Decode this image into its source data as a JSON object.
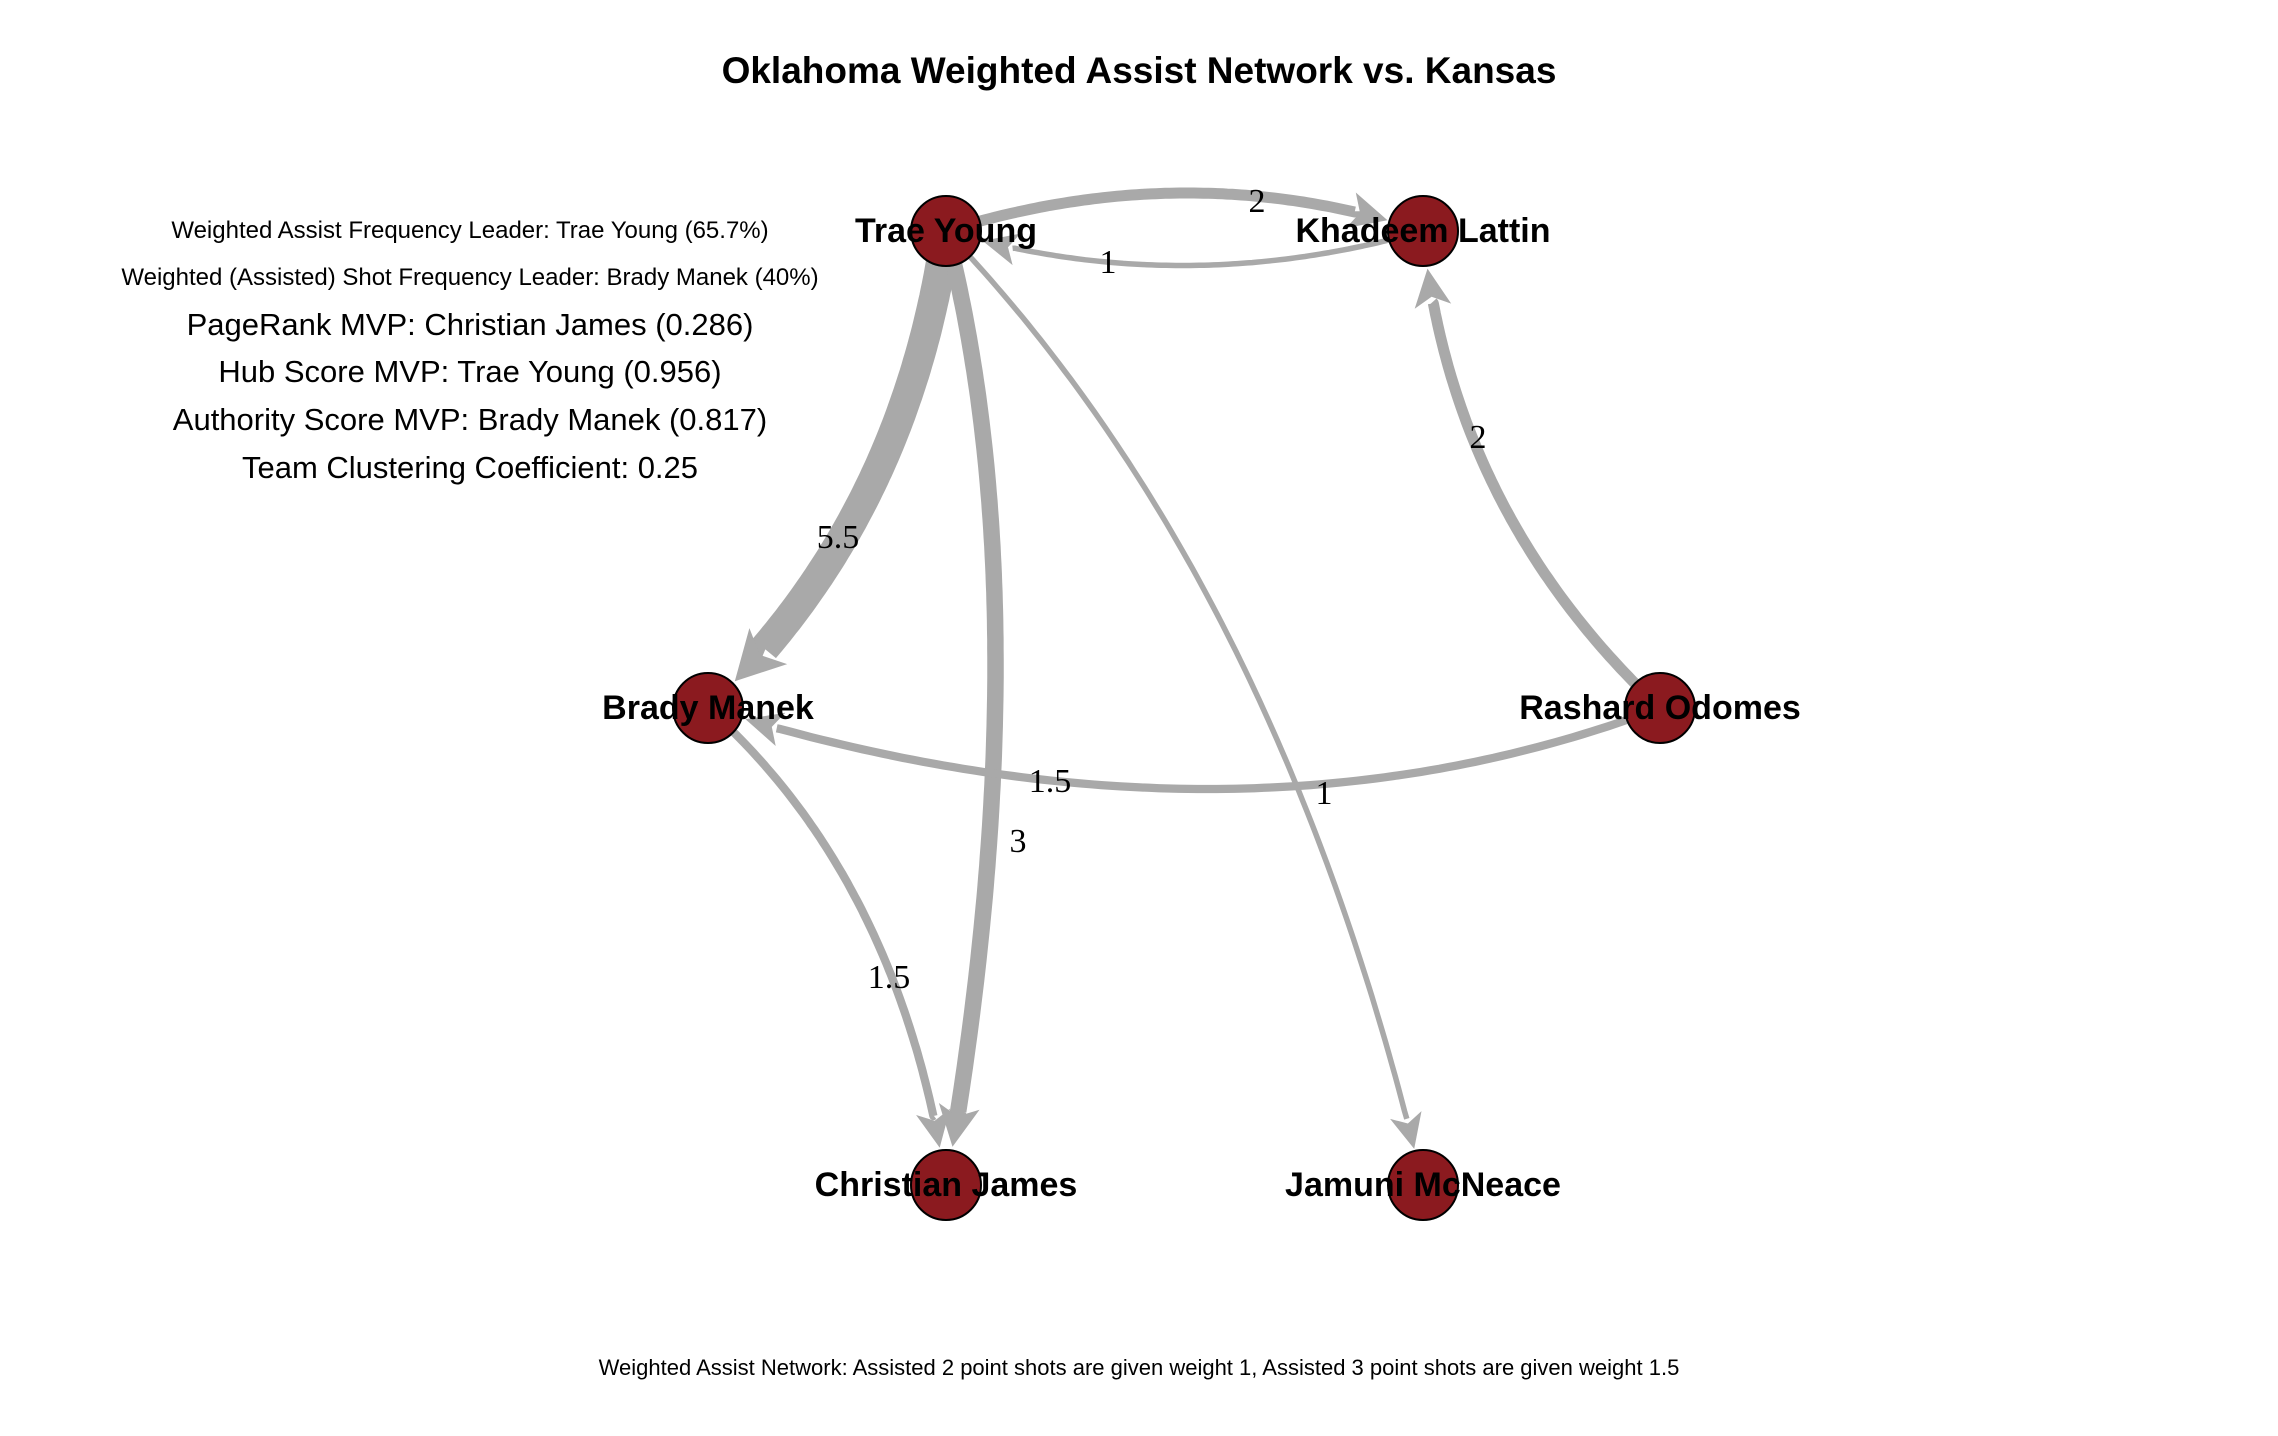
{
  "title": "Oklahoma Weighted Assist Network vs. Kansas",
  "stats": {
    "assist_leader": "Weighted Assist Frequency Leader: Trae Young (65.7%)",
    "shot_leader": "Weighted (Assisted) Shot Frequency Leader: Brady Manek (40%)",
    "pagerank": "PageRank MVP: Christian James (0.286)",
    "hub": "Hub Score MVP: Trae Young (0.956)",
    "authority": "Authority Score MVP: Brady Manek (0.817)",
    "clustering": "Team Clustering Coefficient: 0.25"
  },
  "footer": "Weighted Assist Network: Assisted 2 point shots are given weight 1, Assisted 3 point shots are given weight 1.5",
  "colors": {
    "node_fill": "#8b1a1f",
    "node_stroke": "#000000",
    "edge": "#a9a9a9"
  },
  "nodes": [
    {
      "id": "trae",
      "label": "Trae Young"
    },
    {
      "id": "khadeem",
      "label": "Khadeem Lattin"
    },
    {
      "id": "brady",
      "label": "Brady Manek"
    },
    {
      "id": "rashard",
      "label": "Rashard Odomes"
    },
    {
      "id": "christian",
      "label": "Christian James"
    },
    {
      "id": "jamuni",
      "label": "Jamuni McNeace"
    }
  ],
  "edges": [
    {
      "from": "trae",
      "to": "khadeem",
      "weight": "2"
    },
    {
      "from": "khadeem",
      "to": "trae",
      "weight": "1"
    },
    {
      "from": "trae",
      "to": "brady",
      "weight": "5.5"
    },
    {
      "from": "trae",
      "to": "christian",
      "weight": "3"
    },
    {
      "from": "trae",
      "to": "jamuni",
      "weight": "1"
    },
    {
      "from": "rashard",
      "to": "khadeem",
      "weight": "2"
    },
    {
      "from": "rashard",
      "to": "brady",
      "weight": "1.5"
    },
    {
      "from": "brady",
      "to": "christian",
      "weight": "1.5"
    }
  ]
}
